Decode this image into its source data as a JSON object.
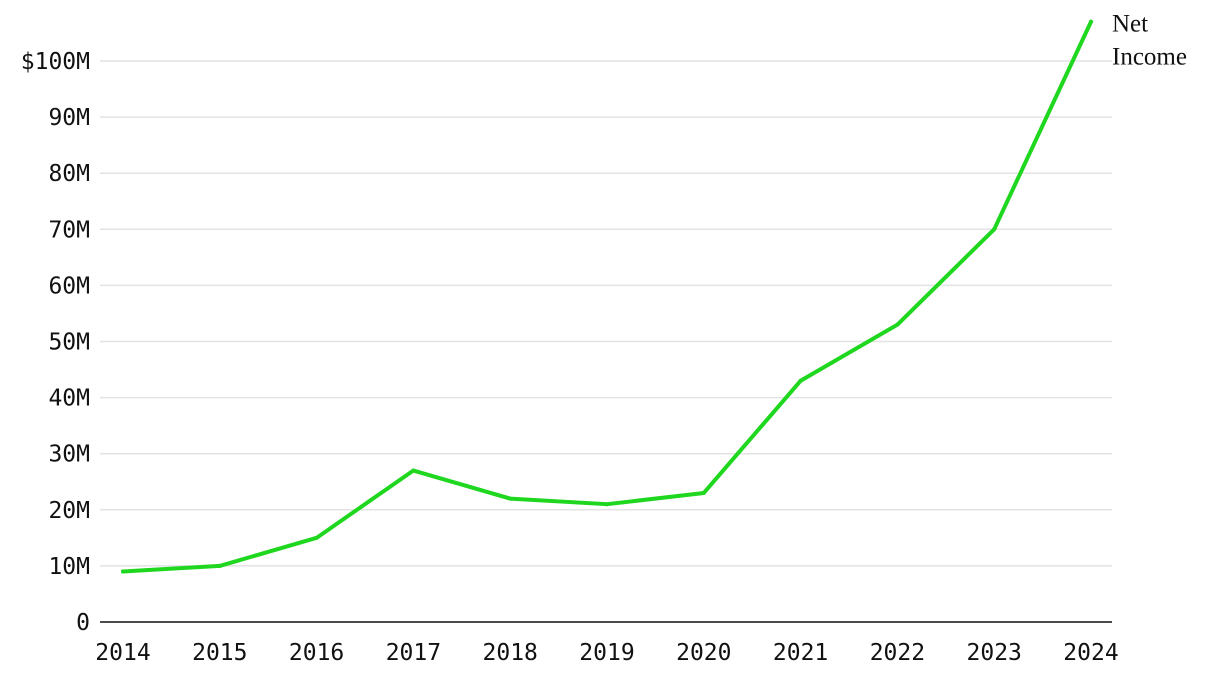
{
  "chart_data": {
    "type": "line",
    "title": "",
    "xlabel": "",
    "ylabel": "",
    "x": [
      "2014",
      "2015",
      "2016",
      "2017",
      "2018",
      "2019",
      "2020",
      "2021",
      "2022",
      "2023",
      "2024"
    ],
    "series": [
      {
        "name": "Net Income",
        "name_lines": [
          "Net",
          "Income"
        ],
        "color": "#1ed71e",
        "values": [
          9,
          10,
          15,
          27,
          22,
          21,
          23,
          43,
          53,
          70,
          107
        ]
      }
    ],
    "ylim": [
      0,
      100
    ],
    "y_unit": "M",
    "y_ticks": [
      0,
      10,
      20,
      30,
      40,
      50,
      60,
      70,
      80,
      90,
      100
    ],
    "y_tick_labels": [
      "0",
      "10M",
      "20M",
      "30M",
      "40M",
      "50M",
      "60M",
      "70M",
      "80M",
      "90M",
      "$100M"
    ],
    "grid": true,
    "legend": "label at end of line"
  }
}
